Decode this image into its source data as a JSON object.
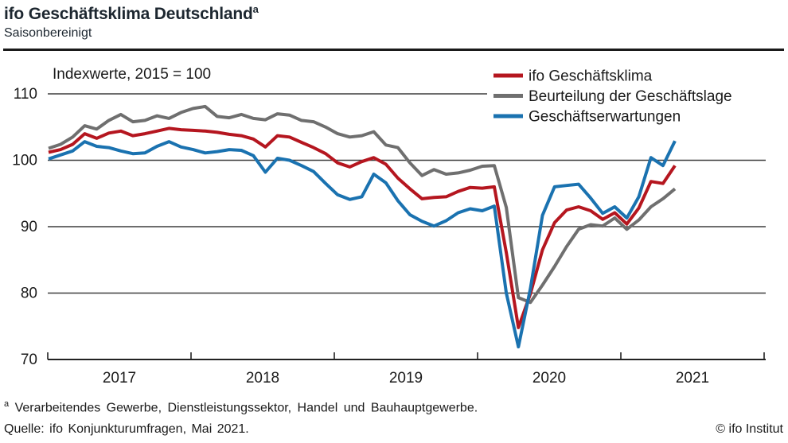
{
  "header": {
    "title": "ifo Geschäftsklima Deutschland",
    "title_superscript": "a",
    "subtitle": "Saisonbereinigt"
  },
  "chart_data": {
    "type": "line",
    "title": "ifo Geschäftsklima Deutschland (Saisonbereinigt)",
    "annotation": "Indexwerte, 2015 = 100",
    "x_tick_labels": [
      "2017",
      "2018",
      "2019",
      "2020",
      "2021"
    ],
    "y_ticks": [
      70,
      80,
      90,
      100,
      110
    ],
    "ylim": [
      70,
      112
    ],
    "grid": "horizontal",
    "legend_position": "top-right",
    "x_frequency": "monthly",
    "months": [
      "2017-01",
      "2017-02",
      "2017-03",
      "2017-04",
      "2017-05",
      "2017-06",
      "2017-07",
      "2017-08",
      "2017-09",
      "2017-10",
      "2017-11",
      "2017-12",
      "2018-01",
      "2018-02",
      "2018-03",
      "2018-04",
      "2018-05",
      "2018-06",
      "2018-07",
      "2018-08",
      "2018-09",
      "2018-10",
      "2018-11",
      "2018-12",
      "2019-01",
      "2019-02",
      "2019-03",
      "2019-04",
      "2019-05",
      "2019-06",
      "2019-07",
      "2019-08",
      "2019-09",
      "2019-10",
      "2019-11",
      "2019-12",
      "2020-01",
      "2020-02",
      "2020-03",
      "2020-04",
      "2020-05",
      "2020-06",
      "2020-07",
      "2020-08",
      "2020-09",
      "2020-10",
      "2020-11",
      "2020-12",
      "2021-01",
      "2021-02",
      "2021-03",
      "2021-04",
      "2021-05"
    ],
    "series": [
      {
        "name": "ifo Geschäftsklima",
        "color": "#b5161f",
        "values": [
          101.2,
          101.6,
          102.4,
          104.0,
          103.3,
          104.1,
          104.4,
          103.7,
          104.0,
          104.4,
          104.8,
          104.6,
          104.5,
          104.4,
          104.2,
          103.9,
          103.7,
          103.2,
          102.0,
          103.7,
          103.5,
          102.7,
          101.9,
          101.0,
          99.6,
          99.0,
          99.8,
          100.4,
          99.4,
          97.3,
          95.7,
          94.2,
          94.4,
          94.5,
          95.3,
          95.9,
          95.8,
          96.0,
          86.1,
          74.8,
          79.9,
          86.5,
          90.6,
          92.5,
          93.0,
          92.4,
          91.1,
          92.1,
          90.4,
          92.8,
          96.8,
          96.5,
          99.2
        ]
      },
      {
        "name": "Beurteilung der Geschäftslage",
        "color": "#6f6f6f",
        "values": [
          101.8,
          102.4,
          103.5,
          105.2,
          104.7,
          106.0,
          106.9,
          105.8,
          106.0,
          106.7,
          106.3,
          107.2,
          107.8,
          108.1,
          106.6,
          106.4,
          106.9,
          106.3,
          106.1,
          107.0,
          106.8,
          106.0,
          105.8,
          105.0,
          104.0,
          103.5,
          103.7,
          104.3,
          102.3,
          101.9,
          99.6,
          97.7,
          98.6,
          97.9,
          98.1,
          98.5,
          99.1,
          99.2,
          92.9,
          79.3,
          78.6,
          81.2,
          84.0,
          87.0,
          89.6,
          90.3,
          90.1,
          91.3,
          89.6,
          91.0,
          93.0,
          94.2,
          95.7
        ]
      },
      {
        "name": "Geschäftserwartungen",
        "color": "#1a72b0",
        "values": [
          100.2,
          100.8,
          101.4,
          102.8,
          102.1,
          101.9,
          101.4,
          101.0,
          101.1,
          102.1,
          102.8,
          102.0,
          101.6,
          101.1,
          101.3,
          101.6,
          101.5,
          100.7,
          98.2,
          100.3,
          100.0,
          99.2,
          98.3,
          96.5,
          94.8,
          94.1,
          94.5,
          97.9,
          96.6,
          93.9,
          91.8,
          90.8,
          90.1,
          90.9,
          92.1,
          92.7,
          92.4,
          93.1,
          80.0,
          71.9,
          80.7,
          91.7,
          96.0,
          96.2,
          96.4,
          94.3,
          92.0,
          93.0,
          91.3,
          94.5,
          100.4,
          99.2,
          102.9
        ]
      }
    ]
  },
  "footer": {
    "footnote_superscript": "a",
    "footnote": "Verarbeitendes Gewerbe, Dienstleistungssektor, Handel und Bauhauptgewerbe.",
    "source": "Quelle: ifo Konjunkturumfragen, Mai 2021.",
    "copyright": "© ifo Institut"
  }
}
